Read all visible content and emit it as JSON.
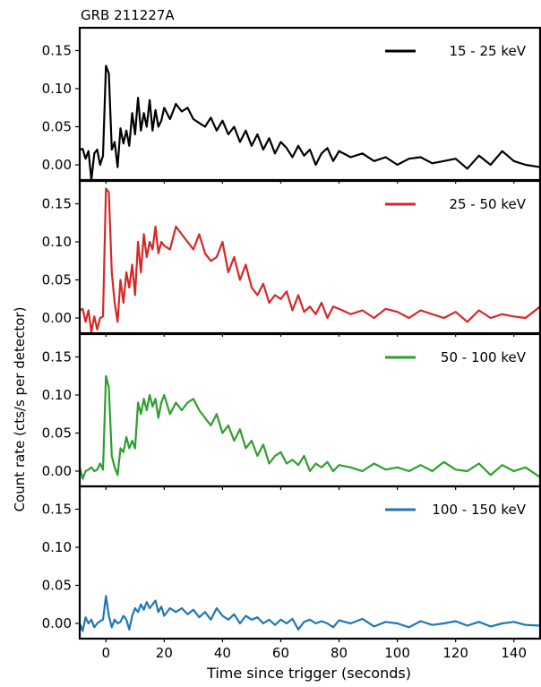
{
  "chart_data": {
    "type": "line",
    "title": "GRB 211227A",
    "xlabel": "Time since trigger (seconds)",
    "ylabel": "Count rate (cts/s per detector)",
    "xlim": [
      -9,
      149
    ],
    "ylim": [
      -0.02,
      0.18
    ],
    "x_ticks": [
      0,
      20,
      40,
      60,
      80,
      100,
      120,
      140
    ],
    "x_tick_labels": [
      "0",
      "20",
      "40",
      "60",
      "80",
      "100",
      "120",
      "140"
    ],
    "y_ticks": [
      0.0,
      0.05,
      0.1,
      0.15
    ],
    "y_tick_labels": [
      "0.00",
      "0.05",
      "0.10",
      "0.15"
    ],
    "legend_position": "top-right",
    "series": [
      {
        "name": "15 - 25 keV",
        "color": "#000000",
        "x": [
          -9,
          -8,
          -7,
          -6,
          -5,
          -4,
          -3,
          -2,
          -1,
          0,
          1,
          2,
          3,
          4,
          5,
          6,
          7,
          8,
          9,
          10,
          11,
          12,
          13,
          14,
          15,
          16,
          17,
          18,
          19,
          20,
          22,
          24,
          26,
          28,
          30,
          32,
          34,
          36,
          38,
          40,
          42,
          44,
          46,
          48,
          50,
          52,
          54,
          56,
          58,
          60,
          62,
          64,
          66,
          68,
          70,
          72,
          74,
          76,
          78,
          80,
          84,
          88,
          92,
          96,
          100,
          104,
          108,
          112,
          116,
          120,
          124,
          128,
          132,
          136,
          140,
          144,
          149
        ],
        "values": [
          0.02,
          0.021,
          0.008,
          0.018,
          -0.02,
          0.015,
          0.02,
          0.0,
          0.012,
          0.13,
          0.12,
          0.02,
          0.03,
          -0.003,
          0.048,
          0.028,
          0.045,
          0.025,
          0.068,
          0.04,
          0.088,
          0.045,
          0.068,
          0.05,
          0.085,
          0.045,
          0.072,
          0.05,
          0.058,
          0.075,
          0.06,
          0.08,
          0.07,
          0.075,
          0.06,
          0.055,
          0.05,
          0.062,
          0.045,
          0.058,
          0.04,
          0.05,
          0.03,
          0.045,
          0.025,
          0.04,
          0.02,
          0.035,
          0.015,
          0.03,
          0.022,
          0.01,
          0.025,
          0.012,
          0.02,
          0.0,
          0.015,
          0.022,
          0.005,
          0.018,
          0.01,
          0.015,
          0.005,
          0.01,
          0.0,
          0.008,
          0.01,
          0.002,
          0.005,
          0.008,
          -0.005,
          0.012,
          0.0,
          0.018,
          0.005,
          0.0,
          -0.003
        ]
      },
      {
        "name": "25 - 50 keV",
        "color": "#d62728",
        "x": [
          -9,
          -8,
          -7,
          -6,
          -5,
          -4,
          -3,
          -2,
          -1,
          0,
          1,
          2,
          3,
          4,
          5,
          6,
          7,
          8,
          9,
          10,
          11,
          12,
          13,
          14,
          15,
          16,
          17,
          18,
          19,
          20,
          22,
          24,
          26,
          28,
          30,
          32,
          34,
          36,
          38,
          40,
          42,
          44,
          46,
          48,
          50,
          52,
          54,
          56,
          58,
          60,
          62,
          64,
          66,
          68,
          70,
          72,
          74,
          76,
          78,
          80,
          84,
          88,
          92,
          96,
          100,
          104,
          108,
          112,
          116,
          120,
          124,
          128,
          132,
          136,
          140,
          144,
          149
        ],
        "values": [
          0.01,
          0.012,
          -0.005,
          0.01,
          -0.018,
          0.002,
          -0.015,
          0.0,
          0.002,
          0.17,
          0.165,
          0.06,
          0.02,
          -0.005,
          0.05,
          0.02,
          0.06,
          0.04,
          0.07,
          0.03,
          0.1,
          0.06,
          0.11,
          0.08,
          0.1,
          0.09,
          0.12,
          0.085,
          0.1,
          0.095,
          0.09,
          0.12,
          0.11,
          0.1,
          0.09,
          0.11,
          0.085,
          0.075,
          0.08,
          0.1,
          0.06,
          0.08,
          0.05,
          0.07,
          0.04,
          0.03,
          0.045,
          0.02,
          0.03,
          0.025,
          0.035,
          0.01,
          0.03,
          0.008,
          0.015,
          0.005,
          0.02,
          0.0,
          0.015,
          0.012,
          0.005,
          0.01,
          0.0,
          0.012,
          0.008,
          0.0,
          0.01,
          0.005,
          0.0,
          0.008,
          -0.005,
          0.01,
          0.0,
          0.005,
          0.002,
          0.0,
          0.015
        ]
      },
      {
        "name": "50 - 100 keV",
        "color": "#2ca02c",
        "x": [
          -9,
          -8,
          -7,
          -6,
          -5,
          -4,
          -3,
          -2,
          -1,
          0,
          1,
          2,
          3,
          4,
          5,
          6,
          7,
          8,
          9,
          10,
          11,
          12,
          13,
          14,
          15,
          16,
          17,
          18,
          19,
          20,
          22,
          24,
          26,
          28,
          30,
          32,
          34,
          36,
          38,
          40,
          42,
          44,
          46,
          48,
          50,
          52,
          54,
          56,
          58,
          60,
          62,
          64,
          66,
          68,
          70,
          72,
          74,
          76,
          78,
          80,
          84,
          88,
          92,
          96,
          100,
          104,
          108,
          112,
          116,
          120,
          124,
          128,
          132,
          136,
          140,
          144,
          149
        ],
        "values": [
          0.005,
          -0.01,
          0.0,
          0.002,
          0.005,
          0.0,
          0.002,
          0.01,
          0.002,
          0.125,
          0.11,
          0.02,
          0.005,
          -0.005,
          0.03,
          0.025,
          0.045,
          0.03,
          0.04,
          0.03,
          0.09,
          0.075,
          0.095,
          0.08,
          0.1,
          0.085,
          0.095,
          0.07,
          0.09,
          0.1,
          0.075,
          0.09,
          0.08,
          0.09,
          0.095,
          0.08,
          0.07,
          0.06,
          0.075,
          0.05,
          0.06,
          0.04,
          0.055,
          0.03,
          0.04,
          0.02,
          0.035,
          0.01,
          0.02,
          0.025,
          0.01,
          0.015,
          0.008,
          0.02,
          0.0,
          0.01,
          0.005,
          0.012,
          0.0,
          0.008,
          0.005,
          0.0,
          0.01,
          0.002,
          0.005,
          0.0,
          0.008,
          0.0,
          0.012,
          0.002,
          0.0,
          0.01,
          -0.005,
          0.008,
          0.0,
          0.005,
          -0.008
        ]
      },
      {
        "name": "100 - 150 keV",
        "color": "#1f77b4",
        "x": [
          -9,
          -8,
          -7,
          -6,
          -5,
          -4,
          -3,
          -2,
          -1,
          0,
          1,
          2,
          3,
          4,
          5,
          6,
          7,
          8,
          9,
          10,
          11,
          12,
          13,
          14,
          15,
          16,
          17,
          18,
          19,
          20,
          22,
          24,
          26,
          28,
          30,
          32,
          34,
          36,
          38,
          40,
          42,
          44,
          46,
          48,
          50,
          52,
          54,
          56,
          58,
          60,
          62,
          64,
          66,
          68,
          70,
          72,
          74,
          76,
          78,
          80,
          84,
          88,
          92,
          96,
          100,
          104,
          108,
          112,
          116,
          120,
          124,
          128,
          132,
          136,
          140,
          144,
          149
        ],
        "values": [
          0.0,
          -0.01,
          0.008,
          0.0,
          0.005,
          -0.005,
          0.0,
          0.003,
          0.005,
          0.036,
          0.01,
          -0.005,
          0.005,
          0.0,
          0.002,
          0.01,
          0.005,
          -0.008,
          0.01,
          0.02,
          0.015,
          0.025,
          0.018,
          0.028,
          0.02,
          0.025,
          0.03,
          0.015,
          0.022,
          0.01,
          0.02,
          0.015,
          0.02,
          0.012,
          0.018,
          0.008,
          0.015,
          0.005,
          0.02,
          0.01,
          0.005,
          0.012,
          0.0,
          0.01,
          0.005,
          0.008,
          0.0,
          0.005,
          -0.002,
          0.005,
          0.0,
          0.006,
          -0.008,
          0.002,
          0.005,
          0.0,
          0.003,
          0.0,
          -0.005,
          0.004,
          0.0,
          0.006,
          -0.004,
          0.002,
          0.0,
          -0.005,
          0.003,
          -0.002,
          0.0,
          0.003,
          -0.003,
          0.002,
          -0.004,
          0.0,
          0.002,
          -0.002,
          -0.003
        ]
      }
    ]
  }
}
